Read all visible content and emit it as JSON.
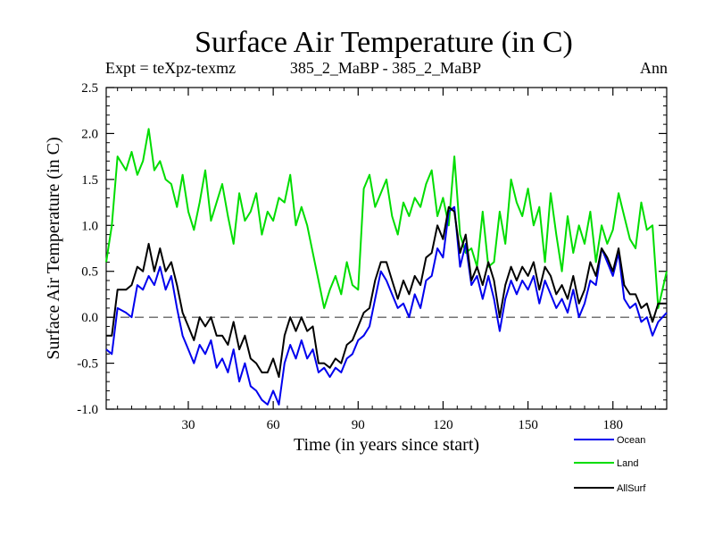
{
  "chart_data": {
    "type": "line",
    "title": "Surface Air Temperature (in C)",
    "subtitle_left": "Expt = teXpz-texmz",
    "subtitle_center": "385_2_MaBP - 385_2_MaBP",
    "subtitle_right": "Ann",
    "xlabel": "Time (in years since start)",
    "ylabel": "Surface Air Temperature (in C)",
    "xlim": [
      1,
      199
    ],
    "ylim": [
      -1.0,
      2.5
    ],
    "xticks": [
      30,
      60,
      90,
      120,
      150,
      180
    ],
    "xtick_labels": [
      "30",
      "60",
      "90",
      "120",
      "150",
      "180"
    ],
    "yticks": [
      -1.0,
      -0.5,
      0.0,
      0.5,
      1.0,
      1.5,
      2.0,
      2.5
    ],
    "ytick_labels": [
      "-1.0",
      "-0.5",
      "0.0",
      "0.5",
      "1.0",
      "1.5",
      "2.0",
      "2.5"
    ],
    "zero_line": 0.0,
    "legend_position": "bottom-right",
    "series": [
      {
        "name": "Ocean",
        "color": "#0000ee",
        "x": [
          1,
          3,
          5,
          8,
          10,
          12,
          14,
          16,
          18,
          20,
          22,
          24,
          26,
          28,
          30,
          32,
          34,
          36,
          38,
          40,
          42,
          44,
          46,
          48,
          50,
          52,
          54,
          56,
          58,
          60,
          62,
          64,
          66,
          68,
          70,
          72,
          74,
          76,
          78,
          80,
          82,
          84,
          86,
          88,
          90,
          92,
          94,
          96,
          98,
          100,
          102,
          104,
          106,
          108,
          110,
          112,
          114,
          116,
          118,
          120,
          122,
          124,
          126,
          128,
          130,
          132,
          134,
          136,
          138,
          140,
          142,
          144,
          146,
          148,
          150,
          152,
          154,
          156,
          158,
          160,
          162,
          164,
          166,
          168,
          170,
          172,
          174,
          176,
          178,
          180,
          182,
          184,
          186,
          188,
          190,
          192,
          194,
          196,
          199
        ],
        "values": [
          -0.35,
          -0.4,
          0.1,
          0.05,
          0.0,
          0.35,
          0.3,
          0.45,
          0.35,
          0.55,
          0.3,
          0.45,
          0.1,
          -0.2,
          -0.35,
          -0.5,
          -0.3,
          -0.4,
          -0.25,
          -0.55,
          -0.45,
          -0.6,
          -0.35,
          -0.7,
          -0.5,
          -0.75,
          -0.8,
          -0.9,
          -0.95,
          -0.8,
          -0.95,
          -0.5,
          -0.3,
          -0.45,
          -0.25,
          -0.45,
          -0.35,
          -0.6,
          -0.55,
          -0.65,
          -0.55,
          -0.6,
          -0.45,
          -0.4,
          -0.25,
          -0.2,
          -0.1,
          0.2,
          0.5,
          0.4,
          0.25,
          0.1,
          0.15,
          0.0,
          0.25,
          0.1,
          0.4,
          0.45,
          0.75,
          0.65,
          1.15,
          1.2,
          0.55,
          0.8,
          0.35,
          0.45,
          0.2,
          0.45,
          0.2,
          -0.15,
          0.2,
          0.4,
          0.25,
          0.4,
          0.3,
          0.45,
          0.15,
          0.4,
          0.25,
          0.1,
          0.2,
          0.05,
          0.3,
          0.0,
          0.15,
          0.4,
          0.35,
          0.75,
          0.6,
          0.45,
          0.7,
          0.2,
          0.1,
          0.15,
          -0.05,
          0.0,
          -0.2,
          -0.05,
          0.05
        ]
      },
      {
        "name": "Land",
        "color": "#00dd00",
        "x": [
          1,
          3,
          5,
          8,
          10,
          12,
          14,
          16,
          18,
          20,
          22,
          24,
          26,
          28,
          30,
          32,
          34,
          36,
          38,
          40,
          42,
          44,
          46,
          48,
          50,
          52,
          54,
          56,
          58,
          60,
          62,
          64,
          66,
          68,
          70,
          72,
          74,
          76,
          78,
          80,
          82,
          84,
          86,
          88,
          90,
          92,
          94,
          96,
          98,
          100,
          102,
          104,
          106,
          108,
          110,
          112,
          114,
          116,
          118,
          120,
          122,
          124,
          126,
          128,
          130,
          132,
          134,
          136,
          138,
          140,
          142,
          144,
          146,
          148,
          150,
          152,
          154,
          156,
          158,
          160,
          162,
          164,
          166,
          168,
          170,
          172,
          174,
          176,
          178,
          180,
          182,
          184,
          186,
          188,
          190,
          192,
          194,
          196,
          199
        ],
        "values": [
          0.6,
          1.0,
          1.75,
          1.6,
          1.8,
          1.55,
          1.7,
          2.05,
          1.6,
          1.7,
          1.5,
          1.45,
          1.2,
          1.55,
          1.15,
          0.95,
          1.25,
          1.6,
          1.05,
          1.25,
          1.45,
          1.1,
          0.8,
          1.35,
          1.05,
          1.15,
          1.35,
          0.9,
          1.15,
          1.05,
          1.3,
          1.25,
          1.55,
          1.0,
          1.2,
          1.0,
          0.7,
          0.4,
          0.1,
          0.3,
          0.45,
          0.25,
          0.6,
          0.35,
          0.3,
          1.4,
          1.55,
          1.2,
          1.35,
          1.5,
          1.1,
          0.9,
          1.25,
          1.1,
          1.3,
          1.2,
          1.45,
          1.6,
          1.1,
          1.3,
          1.0,
          1.75,
          0.9,
          0.7,
          0.75,
          0.55,
          1.15,
          0.55,
          0.6,
          1.15,
          0.8,
          1.5,
          1.25,
          1.1,
          1.4,
          1.0,
          1.2,
          0.6,
          1.35,
          0.9,
          0.5,
          1.1,
          0.7,
          1.0,
          0.8,
          1.15,
          0.6,
          1.0,
          0.8,
          0.95,
          1.35,
          1.1,
          0.85,
          0.75,
          1.25,
          0.95,
          1.0,
          0.1,
          0.5
        ]
      },
      {
        "name": "AllSurf",
        "color": "#000000",
        "x": [
          1,
          3,
          5,
          8,
          10,
          12,
          14,
          16,
          18,
          20,
          22,
          24,
          26,
          28,
          30,
          32,
          34,
          36,
          38,
          40,
          42,
          44,
          46,
          48,
          50,
          52,
          54,
          56,
          58,
          60,
          62,
          64,
          66,
          68,
          70,
          72,
          74,
          76,
          78,
          80,
          82,
          84,
          86,
          88,
          90,
          92,
          94,
          96,
          98,
          100,
          102,
          104,
          106,
          108,
          110,
          112,
          114,
          116,
          118,
          120,
          122,
          124,
          126,
          128,
          130,
          132,
          134,
          136,
          138,
          140,
          142,
          144,
          146,
          148,
          150,
          152,
          154,
          156,
          158,
          160,
          162,
          164,
          166,
          168,
          170,
          172,
          174,
          176,
          178,
          180,
          182,
          184,
          186,
          188,
          190,
          192,
          194,
          196,
          199
        ],
        "values": [
          -0.2,
          -0.2,
          0.3,
          0.3,
          0.35,
          0.55,
          0.5,
          0.8,
          0.5,
          0.75,
          0.5,
          0.6,
          0.35,
          0.05,
          -0.1,
          -0.25,
          0.0,
          -0.1,
          0.0,
          -0.2,
          -0.2,
          -0.3,
          -0.05,
          -0.35,
          -0.2,
          -0.45,
          -0.5,
          -0.6,
          -0.6,
          -0.45,
          -0.65,
          -0.2,
          0.0,
          -0.15,
          0.0,
          -0.15,
          -0.1,
          -0.5,
          -0.5,
          -0.55,
          -0.45,
          -0.5,
          -0.3,
          -0.25,
          -0.1,
          0.05,
          0.1,
          0.4,
          0.6,
          0.6,
          0.4,
          0.2,
          0.4,
          0.25,
          0.45,
          0.35,
          0.65,
          0.7,
          1.0,
          0.85,
          1.2,
          1.15,
          0.7,
          0.9,
          0.4,
          0.55,
          0.35,
          0.6,
          0.4,
          0.0,
          0.35,
          0.55,
          0.4,
          0.55,
          0.45,
          0.6,
          0.3,
          0.55,
          0.45,
          0.25,
          0.35,
          0.2,
          0.45,
          0.15,
          0.3,
          0.6,
          0.45,
          0.75,
          0.65,
          0.5,
          0.75,
          0.35,
          0.25,
          0.25,
          0.1,
          0.15,
          -0.05,
          0.15,
          0.15
        ]
      }
    ]
  }
}
